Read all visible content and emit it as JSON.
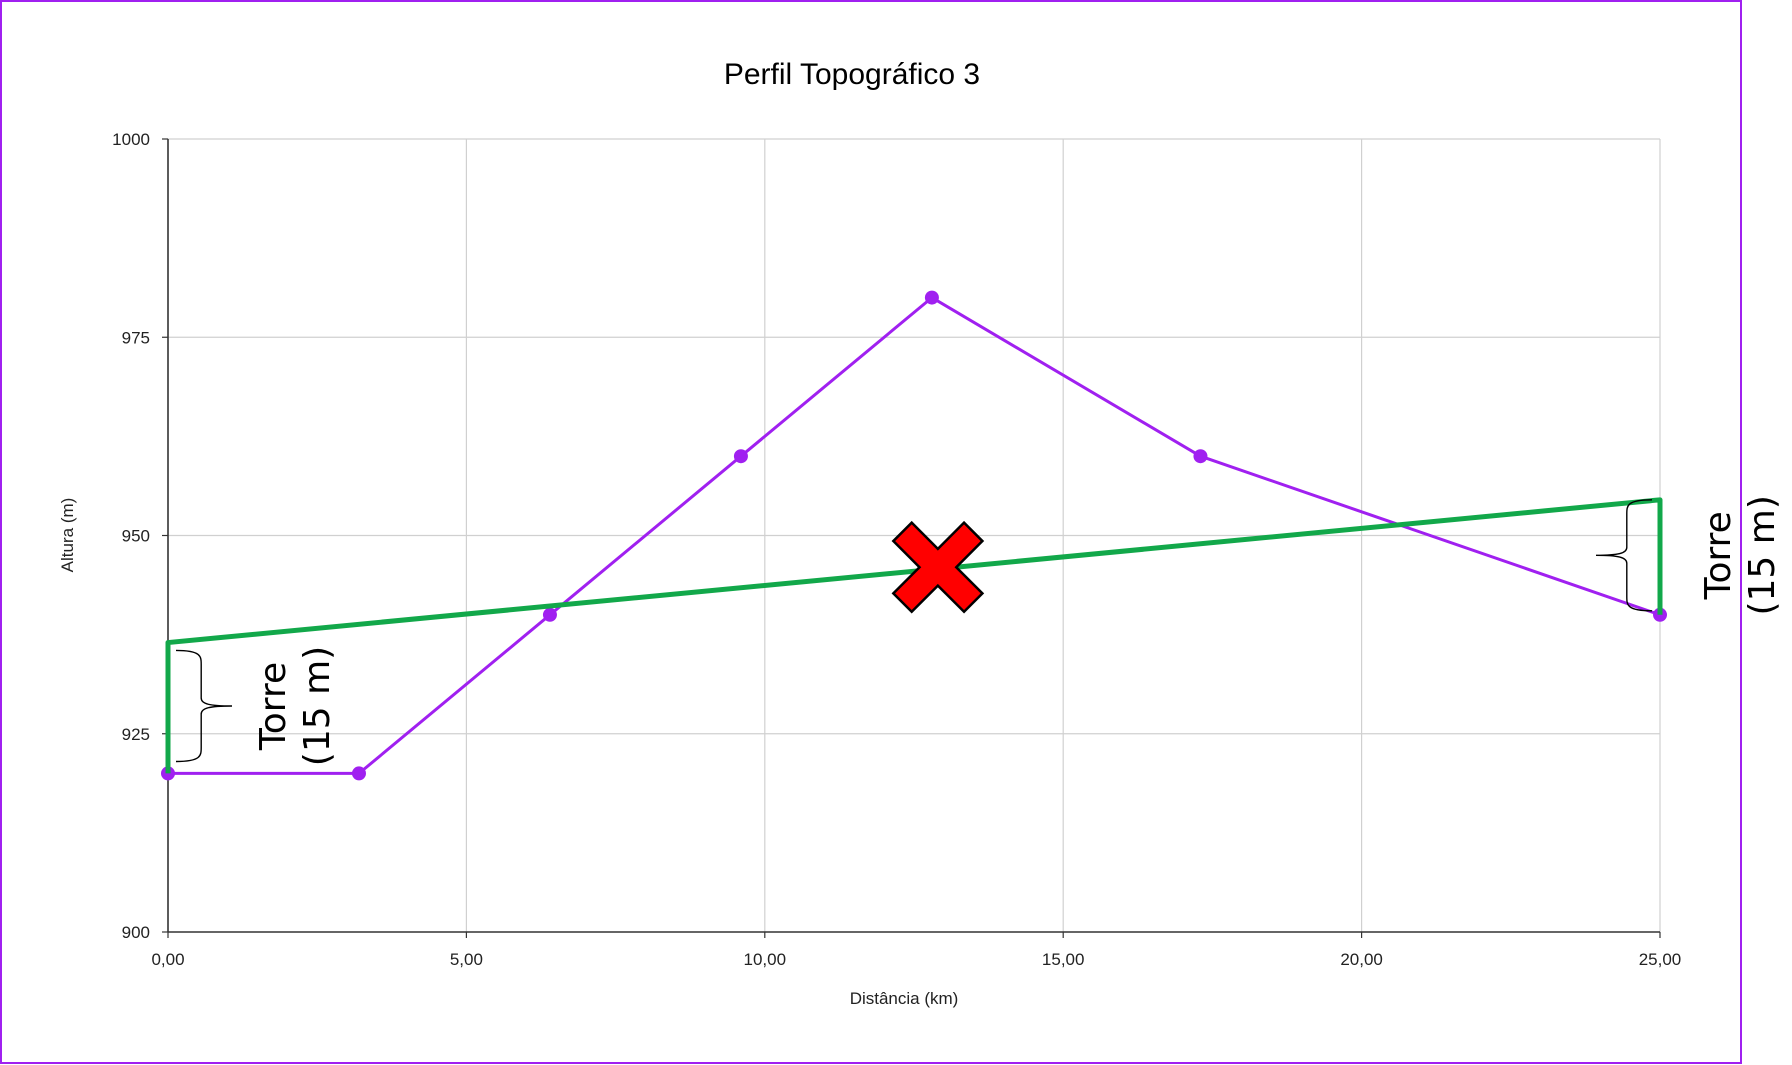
{
  "chart_data": {
    "type": "line",
    "title": "Perfil Topográfico 3",
    "xlabel": "Distância (km)",
    "ylabel": "Altura (m)",
    "xlim": [
      0,
      25
    ],
    "ylim": [
      900,
      1000
    ],
    "x_ticks": [
      {
        "value": 0,
        "label": "0,00"
      },
      {
        "value": 5,
        "label": "5,00"
      },
      {
        "value": 10,
        "label": "10,00"
      },
      {
        "value": 15,
        "label": "15,00"
      },
      {
        "value": 20,
        "label": "20,00"
      },
      {
        "value": 25,
        "label": "25,00"
      }
    ],
    "y_ticks": [
      {
        "value": 900,
        "label": "900"
      },
      {
        "value": 925,
        "label": "925"
      },
      {
        "value": 950,
        "label": "950"
      },
      {
        "value": 975,
        "label": "975"
      },
      {
        "value": 1000,
        "label": "1000"
      }
    ],
    "grid": true,
    "series": [
      {
        "color": "#a020f0",
        "markers": true,
        "points": [
          {
            "x": 0,
            "y": 920
          },
          {
            "x": 3.2,
            "y": 920
          },
          {
            "x": 6.4,
            "y": 940
          },
          {
            "x": 9.6,
            "y": 960
          },
          {
            "x": 12.8,
            "y": 980
          },
          {
            "x": 17.3,
            "y": 960
          },
          {
            "x": 25,
            "y": 940
          }
        ]
      },
      {
        "color": "#12a84a",
        "markers": false,
        "points": [
          {
            "x": 0,
            "y": 920
          },
          {
            "x": 0,
            "y": 936.5
          },
          {
            "x": 25,
            "y": 954.5
          },
          {
            "x": 25,
            "y": 940
          }
        ]
      }
    ],
    "annotations": [
      {
        "text_lines": [
          "Torre",
          "(15 m)"
        ],
        "anchor_x": 0,
        "y_bottom": 921.5,
        "y_top": 935.5,
        "side": "left"
      },
      {
        "text_lines": [
          "Torre",
          "(15 m)"
        ],
        "anchor_x": 25,
        "y_bottom": 940.5,
        "y_top": 954.5,
        "side": "right"
      }
    ],
    "obstruction_marker": {
      "symbol": "x-mark",
      "color": "#ff0000",
      "x": 12.9,
      "y": 946
    }
  },
  "colors": {
    "frame_border": "#a020f0",
    "grid": "#d0d0d0",
    "axis": "#333333"
  }
}
